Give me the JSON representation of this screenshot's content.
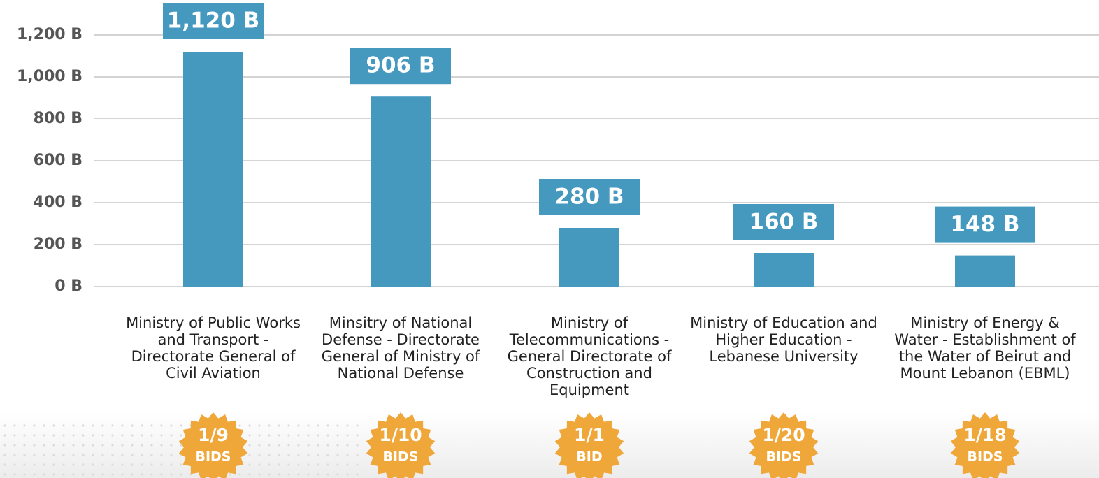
{
  "chart_data": {
    "type": "bar",
    "categories": [
      "Ministry of Public Works and Transport - Directorate General of Civil Aviation",
      "Minsitry of National Defense - Directorate General of Ministry of National Defense",
      "Ministry of Telecommunications - General Directorate of Construction and Equipment",
      "Ministry of Education and Higher Education - Lebanese University",
      "Ministry of Energy & Water - Establishment of the Water of Beirut and Mount Lebanon (EBML)"
    ],
    "values": [
      1120,
      906,
      280,
      160,
      148
    ],
    "value_labels": [
      "1,120 B",
      "906 B",
      "280 B",
      "160 B",
      "148 B"
    ],
    "color": "#4599bf",
    "ylim": [
      0,
      1200
    ],
    "yticks": [
      {
        "value": 0,
        "label": "0 B"
      },
      {
        "value": 200,
        "label": "200 B"
      },
      {
        "value": 400,
        "label": "400 B"
      },
      {
        "value": 600,
        "label": "600 B"
      },
      {
        "value": 800,
        "label": "800 B"
      },
      {
        "value": 1000,
        "label": "1,000 B"
      },
      {
        "value": 1200,
        "label": "1,200 B"
      }
    ],
    "grid": true,
    "bid_counts": [
      "1/9",
      "1/10",
      "1/1",
      "1/20",
      "1/18"
    ],
    "bid_units": [
      "BIDS",
      "BIDS",
      "BID",
      "BIDS",
      "BIDS"
    ],
    "badge_color": "#f0a73a"
  }
}
